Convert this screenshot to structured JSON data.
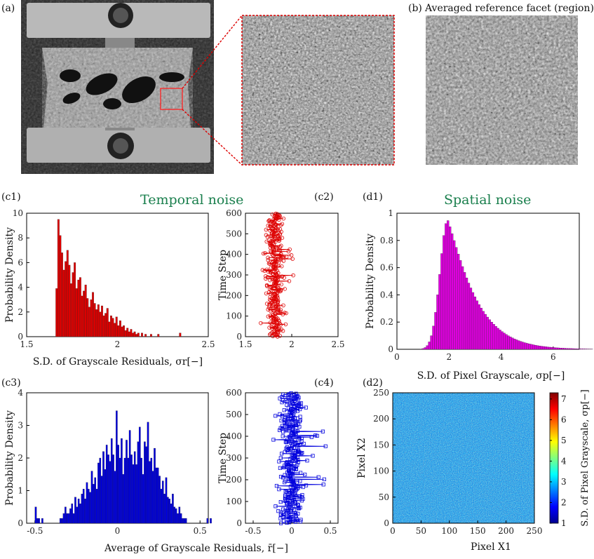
{
  "headings": {
    "temporal": "Temporal noise",
    "spatial": "Spatial noise"
  },
  "panel_labels": {
    "a": "(a)",
    "b": "(b)",
    "c1": "(c1)",
    "c2": "(c2)",
    "c3": "(c3)",
    "c4": "(c4)",
    "d1": "(d1)",
    "d2": "(d2)"
  },
  "images": {
    "b_title": "Averaged reference facet (region)"
  },
  "colors": {
    "red": "#dd0000",
    "blue": "#0000dd",
    "magenta": "#dd00dd",
    "heading": "#1a7f4d"
  },
  "chart_data": [
    {
      "id": "c1",
      "type": "bar",
      "xlabel": "S.D. of Grayscale Residuals, σr[−]",
      "ylabel": "Probability Density",
      "xlim": [
        1.5,
        2.5
      ],
      "ylim": [
        0,
        10
      ],
      "xticks": [
        "1.5",
        "2",
        "2.5"
      ],
      "yticks": [
        "0",
        "2",
        "4",
        "6",
        "8",
        "10"
      ],
      "bin_start": 1.66,
      "bin_width": 0.01,
      "values": [
        3.9,
        9.5,
        8.2,
        6.8,
        5.4,
        6.1,
        7.0,
        5.8,
        4.3,
        5.2,
        6.0,
        3.9,
        4.6,
        4.8,
        3.3,
        3.7,
        4.2,
        3.1,
        2.4,
        3.0,
        3.6,
        2.7,
        2.2,
        2.6,
        2.0,
        2.5,
        1.7,
        1.9,
        2.3,
        1.2,
        1.7,
        1.5,
        1.1,
        1.6,
        0.9,
        1.3,
        0.8,
        0.9,
        0.5,
        0.7,
        0.4,
        0.6,
        0.3,
        0.4,
        0.2,
        0.3,
        0,
        0.3,
        0,
        0.2,
        0,
        0,
        0.2,
        0,
        0,
        0,
        0.2,
        0,
        0,
        0,
        0,
        0,
        0,
        0,
        0,
        0,
        0,
        0,
        0.3,
        0
      ]
    },
    {
      "id": "c2",
      "type": "line",
      "ylabel": "Time Step",
      "xlim": [
        1.5,
        2.5
      ],
      "ylim": [
        0,
        600
      ],
      "xticks": [
        "1.5",
        "2",
        "2.5"
      ],
      "yticks": [
        "0",
        "100",
        "200",
        "300",
        "400",
        "500",
        "600"
      ],
      "n": 600,
      "mean": 1.82,
      "spread": 0.1
    },
    {
      "id": "c3",
      "type": "bar",
      "xlabel": "Average of Grayscale Residuals, r̄[−]",
      "ylabel": "Probability Density",
      "xlim": [
        -0.55,
        0.55
      ],
      "ylim": [
        0,
        4
      ],
      "xticks": [
        "-0.5",
        "0",
        "0.5"
      ],
      "yticks": [
        "0",
        "1",
        "2",
        "3",
        "4"
      ],
      "bin_start": -0.5,
      "bin_width": 0.01,
      "values": [
        0.5,
        0.15,
        0.15,
        0,
        0.15,
        0,
        0,
        0,
        0,
        0,
        0,
        0,
        0,
        0,
        0,
        0.15,
        0.15,
        0.3,
        0.5,
        0.3,
        0.3,
        0.45,
        0.6,
        0.3,
        0.8,
        0.5,
        0.75,
        0.6,
        0.9,
        1.05,
        0.75,
        1.25,
        1.05,
        0.95,
        1.6,
        1.2,
        1.4,
        1.05,
        1.85,
        2.0,
        1.45,
        2.2,
        1.65,
        2.4,
        2.1,
        1.9,
        2.6,
        2.1,
        1.6,
        3.45,
        2.4,
        2.0,
        2.6,
        1.5,
        2.0,
        2.55,
        2.0,
        2.85,
        2.1,
        1.8,
        2.2,
        1.8,
        2.5,
        2.95,
        2.0,
        1.5,
        2.5,
        2.35,
        3.1,
        1.9,
        2.0,
        1.6,
        2.3,
        1.7,
        1.7,
        1.45,
        1.05,
        1.3,
        0.9,
        1.4,
        0.8,
        0.75,
        0.6,
        0.9,
        0.5,
        0.45,
        0.3,
        0.5,
        0.3,
        0.15,
        0.15,
        0.15,
        0,
        0,
        0,
        0,
        0,
        0,
        0,
        0,
        0,
        0,
        0,
        0,
        0.15,
        0,
        0.15,
        0
      ]
    },
    {
      "id": "c4",
      "type": "line",
      "ylabel": "Time Step",
      "xlim": [
        -0.6,
        0.6
      ],
      "ylim": [
        0,
        600
      ],
      "xticks": [
        "-0.5",
        "0",
        "0.5"
      ],
      "yticks": [
        "0",
        "100",
        "200",
        "300",
        "400",
        "500",
        "600"
      ],
      "n": 600,
      "mean": 0.0,
      "spread": 0.16
    },
    {
      "id": "d1",
      "type": "bar",
      "xlabel": "S.D. of Pixel Grayscale, σp[−]",
      "ylabel": "Probability Density",
      "xlim": [
        0,
        7
      ],
      "ylim": [
        0,
        1
      ],
      "xticks": [
        "0",
        "2",
        "4",
        "6"
      ],
      "yticks": [
        "0",
        "0.2",
        "0.4",
        "0.6",
        "0.8",
        "1"
      ],
      "bin_start": 0.8,
      "bin_width": 0.08,
      "peak": 1.95,
      "rise": 0.42,
      "fall": 1.25,
      "max": 0.95
    },
    {
      "id": "d2",
      "type": "heatmap",
      "xlabel": "Pixel X1",
      "ylabel": "Pixel X2",
      "xlim": [
        0,
        250
      ],
      "ylim": [
        0,
        250
      ],
      "xticks": [
        "0",
        "50",
        "100",
        "150",
        "200",
        "250"
      ],
      "yticks": [
        "0",
        "50",
        "100",
        "150",
        "200",
        "250"
      ],
      "colorbar_label": "S.D. of Pixel Grayscale, σp[−]",
      "colorbar_range": [
        1,
        7.3
      ],
      "colorbar_ticks": [
        "1",
        "2",
        "3",
        "4",
        "5",
        "6",
        "7"
      ]
    }
  ]
}
